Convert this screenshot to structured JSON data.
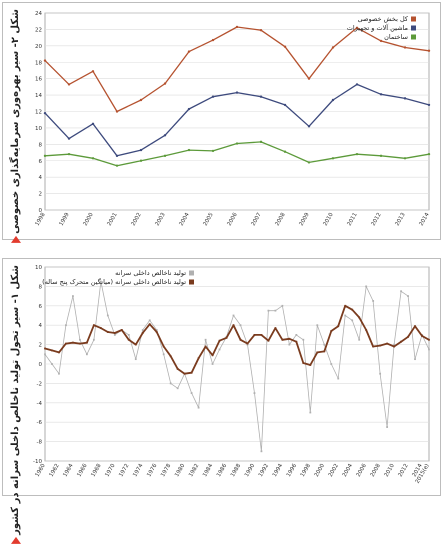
{
  "chart_data": [
    {
      "type": "line",
      "title": "شکل ۲- سیر بهره‌وری سرمایه‌گذاری خصوصی",
      "x": [
        "1998",
        "1999",
        "2000",
        "2001",
        "2002",
        "2003",
        "2004",
        "2005",
        "2006",
        "2007",
        "2008",
        "2009",
        "2010",
        "2011",
        "2012",
        "2013",
        "2014"
      ],
      "ylim": [
        0,
        24
      ],
      "yticks": [
        0,
        2,
        4,
        6,
        8,
        10,
        12,
        14,
        16,
        18,
        20,
        22,
        24
      ],
      "series": [
        {
          "name": "کل بخش خصوصی",
          "color": "#b5522f",
          "values": [
            18.2,
            15.3,
            16.9,
            12.0,
            13.4,
            15.4,
            19.3,
            20.7,
            22.3,
            21.9,
            19.9,
            16.0,
            19.8,
            22.2,
            20.6,
            19.8,
            19.4
          ]
        },
        {
          "name": "ماشین آلات و تجهیزات",
          "color": "#3d4a7d",
          "values": [
            11.8,
            8.7,
            10.5,
            6.6,
            7.3,
            9.1,
            12.3,
            13.8,
            14.3,
            13.8,
            12.8,
            10.2,
            13.4,
            15.3,
            14.1,
            13.6,
            12.8
          ]
        },
        {
          "name": "ساختمان",
          "color": "#5c9a3a",
          "values": [
            6.6,
            6.8,
            6.3,
            5.4,
            6.0,
            6.6,
            7.3,
            7.2,
            8.1,
            8.3,
            7.1,
            5.8,
            6.3,
            6.8,
            6.6,
            6.3,
            6.8
          ]
        }
      ],
      "legend": "top-right"
    },
    {
      "type": "line",
      "title": "شکل ۱- سیر تحول تولید ناخالص داخلی سرانه در کشور",
      "x": [
        "1960",
        "1961",
        "1962",
        "1963",
        "1964",
        "1965",
        "1966",
        "1967",
        "1968",
        "1969",
        "1970",
        "1971",
        "1972",
        "1973",
        "1974",
        "1975",
        "1976",
        "1977",
        "1978",
        "1979",
        "1980",
        "1981",
        "1982",
        "1983",
        "1984",
        "1985",
        "1986",
        "1987",
        "1988",
        "1989",
        "1990",
        "1991",
        "1992",
        "1993",
        "1994",
        "1995",
        "1996",
        "1997",
        "1998",
        "1999",
        "2000",
        "2001",
        "2002",
        "2003",
        "2004",
        "2005",
        "2006",
        "2007",
        "2008",
        "2009",
        "2010",
        "2011",
        "2012",
        "2013",
        "2014",
        "2015"
      ],
      "xticks": [
        "1960",
        "1962",
        "1964",
        "1966",
        "1968",
        "1970",
        "1972",
        "1974",
        "1976",
        "1978",
        "1980",
        "1982",
        "1984",
        "1986",
        "1988",
        "1990",
        "1992",
        "1994",
        "1996",
        "1998",
        "2000",
        "2002",
        "2004",
        "2006",
        "2008",
        "2010",
        "2012",
        "2014",
        "2015(e)"
      ],
      "ylim": [
        -10,
        10
      ],
      "yticks": [
        -10,
        -8,
        -6,
        -4,
        -2,
        0,
        2,
        4,
        6,
        8,
        10
      ],
      "series": [
        {
          "name": "تولید ناخالص داخلی سرانه",
          "color": "#b0b0b0",
          "values": [
            1.0,
            0.0,
            -1.0,
            4.0,
            7.0,
            2.5,
            1.0,
            2.5,
            8.5,
            5.0,
            3.0,
            3.5,
            3.0,
            0.5,
            3.5,
            4.5,
            3.5,
            1.0,
            -2.0,
            -2.5,
            -1.0,
            -3.0,
            -4.5,
            2.5,
            0.0,
            1.5,
            2.8,
            5.0,
            4.0,
            2.0,
            -3.0,
            -9.0,
            5.5,
            5.5,
            6.0,
            2.0,
            3.0,
            2.5,
            -5.0,
            4.0,
            2.0,
            0.0,
            -1.5,
            5.0,
            4.5,
            2.5,
            8.0,
            6.5,
            -1.0,
            -6.5,
            2.0,
            7.5,
            7.0,
            0.5,
            3.0,
            1.5
          ]
        },
        {
          "name": "تولید ناخالص داخلی سرانه (میانگین متحرک پنج ساله)",
          "color": "#7a3b1e",
          "values": [
            1.6,
            1.4,
            1.2,
            2.1,
            2.2,
            2.1,
            2.2,
            4.0,
            3.7,
            3.3,
            3.2,
            3.5,
            2.5,
            2.0,
            3.2,
            4.1,
            3.3,
            1.8,
            0.8,
            -0.5,
            -1.0,
            -0.9,
            0.6,
            1.8,
            0.9,
            2.4,
            2.7,
            4.0,
            2.5,
            2.1,
            3.0,
            3.0,
            2.4,
            3.7,
            2.5,
            2.6,
            2.3,
            0.1,
            -0.1,
            1.2,
            1.3,
            3.4,
            3.9,
            6.0,
            5.6,
            4.8,
            3.5,
            1.8,
            1.9,
            2.1,
            1.8,
            2.3,
            2.8,
            3.9,
            2.9,
            2.5
          ]
        }
      ],
      "legend": "top-right"
    }
  ]
}
